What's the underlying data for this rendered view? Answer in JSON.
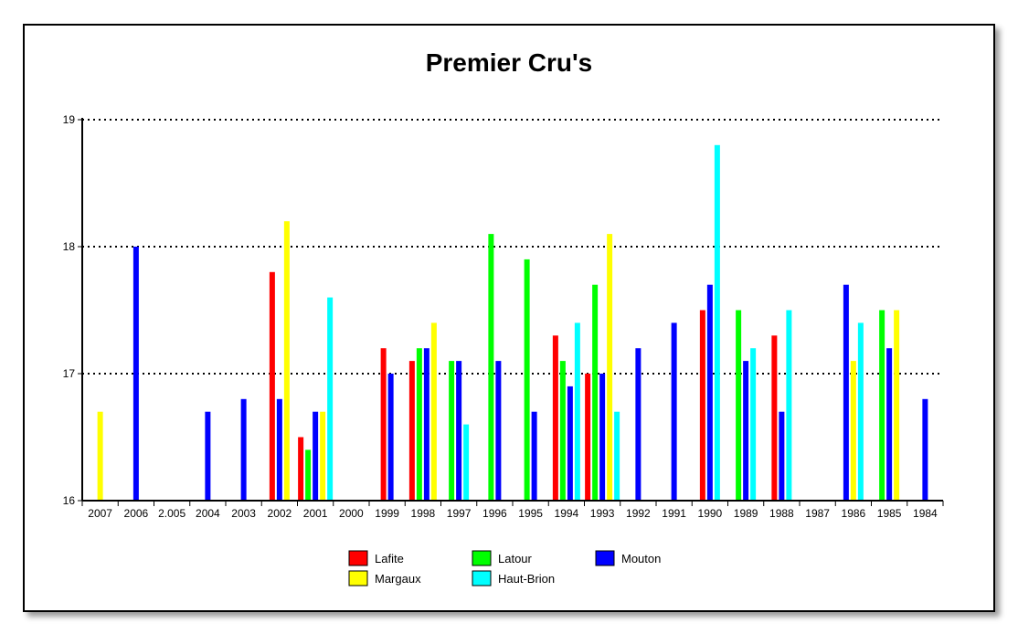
{
  "chart_data": {
    "type": "bar",
    "title": "Premier Cru's",
    "xlabel": "",
    "ylabel": "",
    "ylim": [
      16,
      19
    ],
    "yticks": [
      "16",
      "17",
      "18",
      "19"
    ],
    "grid": "horizontal dotted",
    "legend_position": "bottom",
    "categories": [
      "2007",
      "2006",
      "2.005",
      "2004",
      "2003",
      "2002",
      "2001",
      "2000",
      "1999",
      "1998",
      "1997",
      "1996",
      "1995",
      "1994",
      "1993",
      "1992",
      "1991",
      "1990",
      "1989",
      "1988",
      "1987",
      "1986",
      "1985",
      "1984"
    ],
    "series": [
      {
        "name": "Lafite",
        "color": "#ff0000",
        "values": [
          null,
          null,
          null,
          null,
          null,
          17.8,
          16.5,
          null,
          17.2,
          17.1,
          null,
          null,
          null,
          17.3,
          17.0,
          null,
          null,
          17.5,
          null,
          17.3,
          null,
          null,
          null,
          null
        ]
      },
      {
        "name": "Latour",
        "color": "#00ff00",
        "values": [
          null,
          null,
          null,
          null,
          null,
          null,
          16.4,
          null,
          null,
          17.2,
          17.1,
          18.1,
          17.9,
          17.1,
          17.7,
          null,
          null,
          null,
          17.5,
          null,
          null,
          null,
          17.5,
          null
        ]
      },
      {
        "name": "Margaux",
        "color": "#ffff00",
        "values": [
          16.7,
          null,
          null,
          null,
          null,
          18.2,
          16.7,
          null,
          null,
          17.4,
          null,
          null,
          null,
          null,
          18.1,
          null,
          null,
          null,
          null,
          null,
          null,
          17.1,
          17.5,
          null
        ]
      },
      {
        "name": "Mouton",
        "color": "#0000ff",
        "values": [
          null,
          18.0,
          null,
          16.7,
          16.8,
          16.8,
          16.7,
          null,
          17.0,
          17.2,
          17.1,
          17.1,
          16.7,
          16.9,
          17.0,
          17.2,
          17.4,
          17.7,
          17.1,
          16.7,
          null,
          17.7,
          17.2,
          16.8
        ]
      },
      {
        "name": "Haut-Brion",
        "color": "#00ffff",
        "values": [
          null,
          null,
          null,
          null,
          null,
          null,
          17.6,
          null,
          null,
          null,
          16.6,
          null,
          null,
          17.4,
          16.7,
          null,
          null,
          18.8,
          17.2,
          17.5,
          null,
          17.4,
          null,
          null
        ]
      }
    ],
    "bar_order": [
      "Lafite",
      "Latour",
      "Mouton",
      "Margaux",
      "Haut-Brion"
    ]
  }
}
